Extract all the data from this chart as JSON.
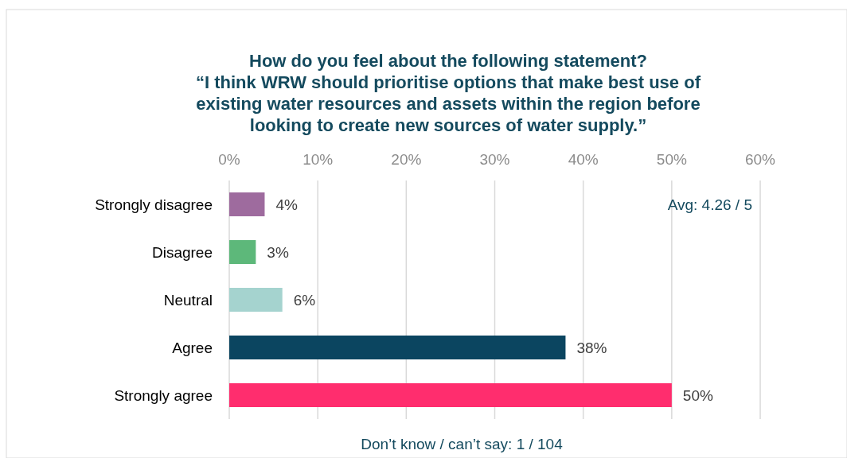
{
  "chart_data": {
    "type": "bar",
    "orientation": "horizontal",
    "title": "How do you feel about the following statement?\n“I think WRW should prioritise options that make best use of\nexisting water resources and assets within the region before\nlooking to create new sources of water supply.”",
    "categories": [
      "Strongly disagree",
      "Disagree",
      "Neutral",
      "Agree",
      "Strongly agree"
    ],
    "values": [
      4,
      3,
      6,
      38,
      50
    ],
    "colors": [
      "#9e6b9e",
      "#5db87a",
      "#a5d3cf",
      "#0b4560",
      "#ff2d6e"
    ],
    "value_labels": [
      "4%",
      "3%",
      "6%",
      "38%",
      "50%"
    ],
    "xlim": [
      0,
      60
    ],
    "xticks": [
      {
        "value": 0,
        "label": "0%"
      },
      {
        "value": 10,
        "label": "10%"
      },
      {
        "value": 20,
        "label": "20%"
      },
      {
        "value": 30,
        "label": "30%"
      },
      {
        "value": 40,
        "label": "40%"
      },
      {
        "value": 50,
        "label": "50%"
      },
      {
        "value": 60,
        "label": "60%"
      }
    ],
    "grid": "x",
    "annotations": [
      "Avg: 4.26 / 5",
      "Don’t know / can’t say: 1 / 104"
    ]
  }
}
